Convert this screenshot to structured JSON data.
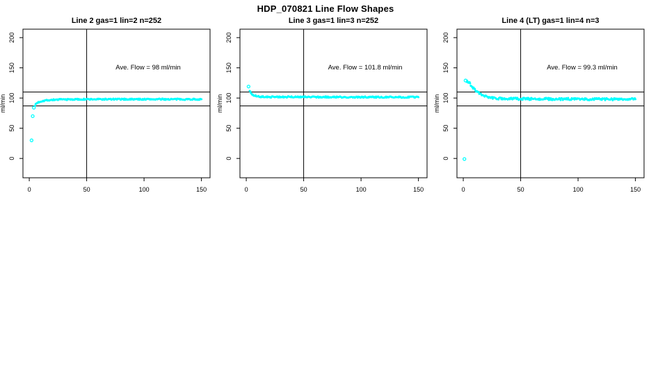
{
  "title": "HDP_070821  Line Flow Shapes",
  "colors": {
    "point_cyan": "#00FFFF",
    "axis_black": "#000000",
    "background": "#FFFFFF"
  },
  "chart_data": [
    {
      "type": "scatter",
      "title": "Line 2 gas=1 lin=2 n=252",
      "annotation": "Ave. Flow =  98  ml/min",
      "ave_flow_ml_min": 98,
      "n_runs": 252,
      "xlabel": "",
      "ylabel": "ml/min",
      "xticks": [
        0,
        50,
        100,
        150
      ],
      "yticks": [
        0,
        50,
        100,
        150,
        200
      ],
      "xlim": [
        -5.5,
        157.5
      ],
      "ylim": [
        -32,
        214
      ],
      "vline_x": 50,
      "hlines": [
        110,
        87
      ],
      "marker": "open-circle",
      "sparse_points": [
        [
          2,
          30
        ],
        [
          3,
          70
        ],
        [
          4,
          84
        ]
      ],
      "curve_points": [
        [
          5,
          88
        ],
        [
          6,
          90.5
        ],
        [
          7,
          92
        ],
        [
          8,
          93
        ],
        [
          9,
          93.8
        ],
        [
          10,
          94.5
        ],
        [
          12,
          95.4
        ],
        [
          14,
          96
        ],
        [
          16,
          96.4
        ],
        [
          18,
          96.8
        ],
        [
          20,
          97
        ],
        [
          25,
          97.4
        ],
        [
          30,
          97.6
        ],
        [
          40,
          97.8
        ],
        [
          50,
          97.9
        ],
        [
          60,
          98
        ],
        [
          80,
          98
        ],
        [
          100,
          98
        ],
        [
          120,
          98
        ],
        [
          150,
          98
        ]
      ],
      "band_jitter": 1.1
    },
    {
      "type": "scatter",
      "title": "Line 3 gas=1 lin=3 n=252",
      "annotation": "Ave. Flow =  101.8  ml/min",
      "ave_flow_ml_min": 101.8,
      "n_runs": 252,
      "xlabel": "",
      "ylabel": "ml/min",
      "xticks": [
        0,
        50,
        100,
        150
      ],
      "yticks": [
        0,
        50,
        100,
        150,
        200
      ],
      "xlim": [
        -5.5,
        157.5
      ],
      "ylim": [
        -32,
        214
      ],
      "vline_x": 50,
      "hlines": [
        110,
        87
      ],
      "marker": "open-circle",
      "sparse_points": [
        [
          2,
          119
        ]
      ],
      "curve_points": [
        [
          3,
          112
        ],
        [
          4,
          108.5
        ],
        [
          5,
          106.5
        ],
        [
          6,
          105.2
        ],
        [
          7,
          104.3
        ],
        [
          8,
          103.6
        ],
        [
          10,
          102.8
        ],
        [
          12,
          102.4
        ],
        [
          15,
          102.1
        ],
        [
          20,
          101.9
        ],
        [
          30,
          101.8
        ],
        [
          40,
          101.8
        ],
        [
          60,
          101.7
        ],
        [
          80,
          101.6
        ],
        [
          100,
          101.6
        ],
        [
          120,
          101.5
        ],
        [
          150,
          101.4
        ]
      ],
      "band_jitter": 1.1
    },
    {
      "type": "scatter",
      "title": "Line 4 (LT) gas=1 lin=4 n=3",
      "annotation": "Ave. Flow =  99.3  ml/min",
      "ave_flow_ml_min": 99.3,
      "n_runs": 3,
      "xlabel": "",
      "ylabel": "ml/min",
      "xticks": [
        0,
        50,
        100,
        150
      ],
      "yticks": [
        0,
        50,
        100,
        150,
        200
      ],
      "xlim": [
        -5.5,
        157.5
      ],
      "ylim": [
        -32,
        214
      ],
      "vline_x": 50,
      "hlines": [
        110,
        87
      ],
      "marker": "open-circle",
      "sparse_points": [
        [
          1,
          -1
        ],
        [
          2,
          129
        ]
      ],
      "curve_points": [
        [
          3,
          128
        ],
        [
          4,
          127
        ],
        [
          5,
          125.5
        ],
        [
          6,
          123.5
        ],
        [
          7,
          121
        ],
        [
          8,
          118.5
        ],
        [
          9,
          116
        ],
        [
          10,
          114
        ],
        [
          12,
          110.3
        ],
        [
          14,
          107.2
        ],
        [
          16,
          105
        ],
        [
          18,
          103.2
        ],
        [
          20,
          101.9
        ],
        [
          22,
          101
        ],
        [
          25,
          100.2
        ],
        [
          30,
          99.4
        ],
        [
          35,
          99
        ],
        [
          40,
          98.8
        ],
        [
          50,
          98.6
        ],
        [
          60,
          98.5
        ],
        [
          80,
          98.4
        ],
        [
          100,
          98.3
        ],
        [
          120,
          98.2
        ],
        [
          150,
          98
        ]
      ],
      "band_jitter": 1.9
    }
  ]
}
